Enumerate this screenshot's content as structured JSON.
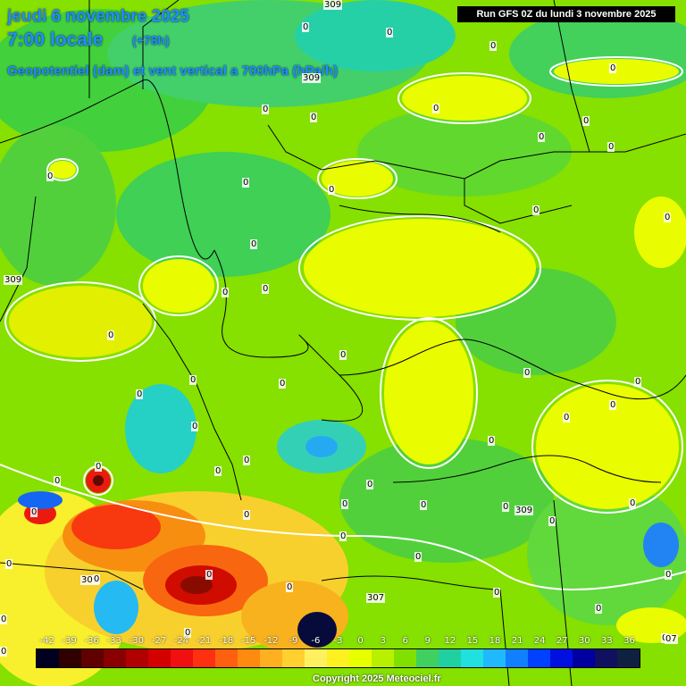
{
  "header": {
    "date": "jeudi 6 novembre 2025",
    "time": "7:00 locale",
    "step": "(+78h)",
    "parameter": "Geopotentiel (dam) et vent vertical a 700hPa (hPa/h)",
    "run": "Run GFS 0Z du lundi 3 novembre 2025"
  },
  "contour_labels": [
    "309",
    "0",
    "0",
    "0",
    "309",
    "0",
    "0",
    "0",
    "0",
    "0",
    "0",
    "0",
    "0",
    "0",
    "0",
    "0",
    "0",
    "0",
    "309",
    "0",
    "0",
    "0",
    "0",
    "0",
    "0",
    "0",
    "0",
    "0",
    "0",
    "0",
    "0",
    "0",
    "309",
    "0",
    "0",
    "0",
    "0",
    "0",
    "0",
    "0",
    "0",
    "0",
    "0",
    "0",
    "0",
    "0",
    "0",
    "0",
    "309",
    "0",
    "0",
    "0",
    "307",
    "0",
    "0",
    "0",
    "0",
    "0",
    "0",
    "0",
    "07"
  ],
  "scale": {
    "ticks": [
      "-42",
      "-39",
      "-36",
      "-33",
      "-30",
      "-27",
      "-24",
      "-21",
      "-18",
      "-15",
      "-12",
      "-9",
      "-6",
      "-3",
      "0",
      "3",
      "6",
      "9",
      "12",
      "15",
      "18",
      "21",
      "24",
      "27",
      "30",
      "33",
      "36"
    ],
    "colors": [
      "#000020",
      "#300000",
      "#600000",
      "#8a0000",
      "#b00000",
      "#d40000",
      "#f01010",
      "#ff3010",
      "#ff6010",
      "#ff8a10",
      "#ffb020",
      "#ffd030",
      "#fff060",
      "#fff020",
      "#e8ff00",
      "#b8f000",
      "#80e000",
      "#40d060",
      "#20d0a0",
      "#20e0e0",
      "#20b8ff",
      "#1080ff",
      "#0040ff",
      "#0010e0",
      "#0000a0",
      "#101060",
      "#102040"
    ]
  },
  "copyright": "Copyright 2025 Meteociel.fr"
}
